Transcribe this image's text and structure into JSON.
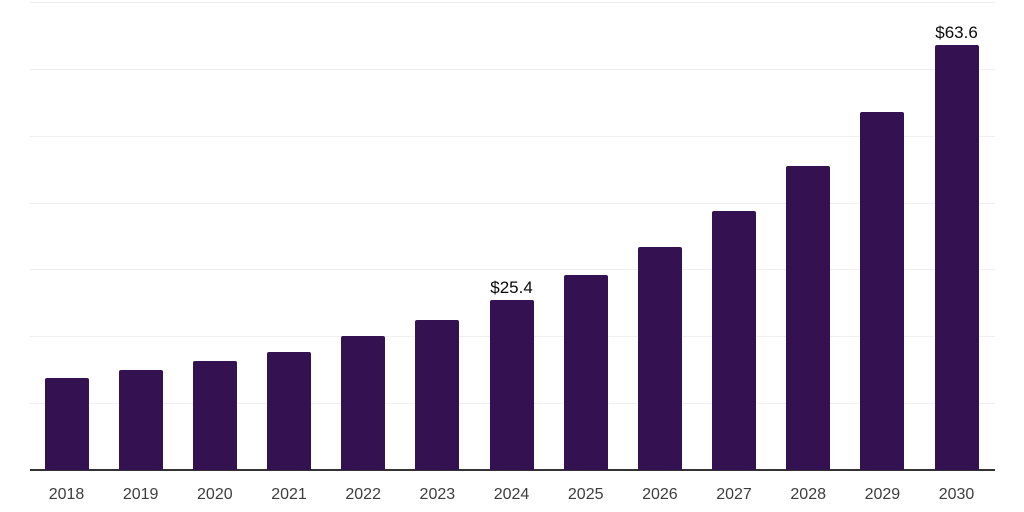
{
  "chart_data": {
    "type": "bar",
    "title": "",
    "xlabel": "",
    "ylabel": "",
    "categories": [
      "2018",
      "2019",
      "2020",
      "2021",
      "2022",
      "2023",
      "2024",
      "2025",
      "2026",
      "2027",
      "2028",
      "2029",
      "2030"
    ],
    "values": [
      13.8,
      15.0,
      16.3,
      17.6,
      20.0,
      22.5,
      25.4,
      29.2,
      33.4,
      38.8,
      45.4,
      53.6,
      63.6
    ],
    "value_labels": {
      "2024": "$25.4",
      "2030": "$63.6"
    },
    "ylim": [
      0,
      70
    ],
    "grid_step": 10,
    "grid": "horizontal",
    "legend": "none",
    "y_tick_labels_visible": false,
    "colors": {
      "bar": "#341150",
      "grid_line": "#f0f0f0",
      "axis_line": "#333333",
      "x_tick_label": "#3d3d3d",
      "value_label": "#0a0a0a",
      "background": "#ffffff"
    }
  }
}
